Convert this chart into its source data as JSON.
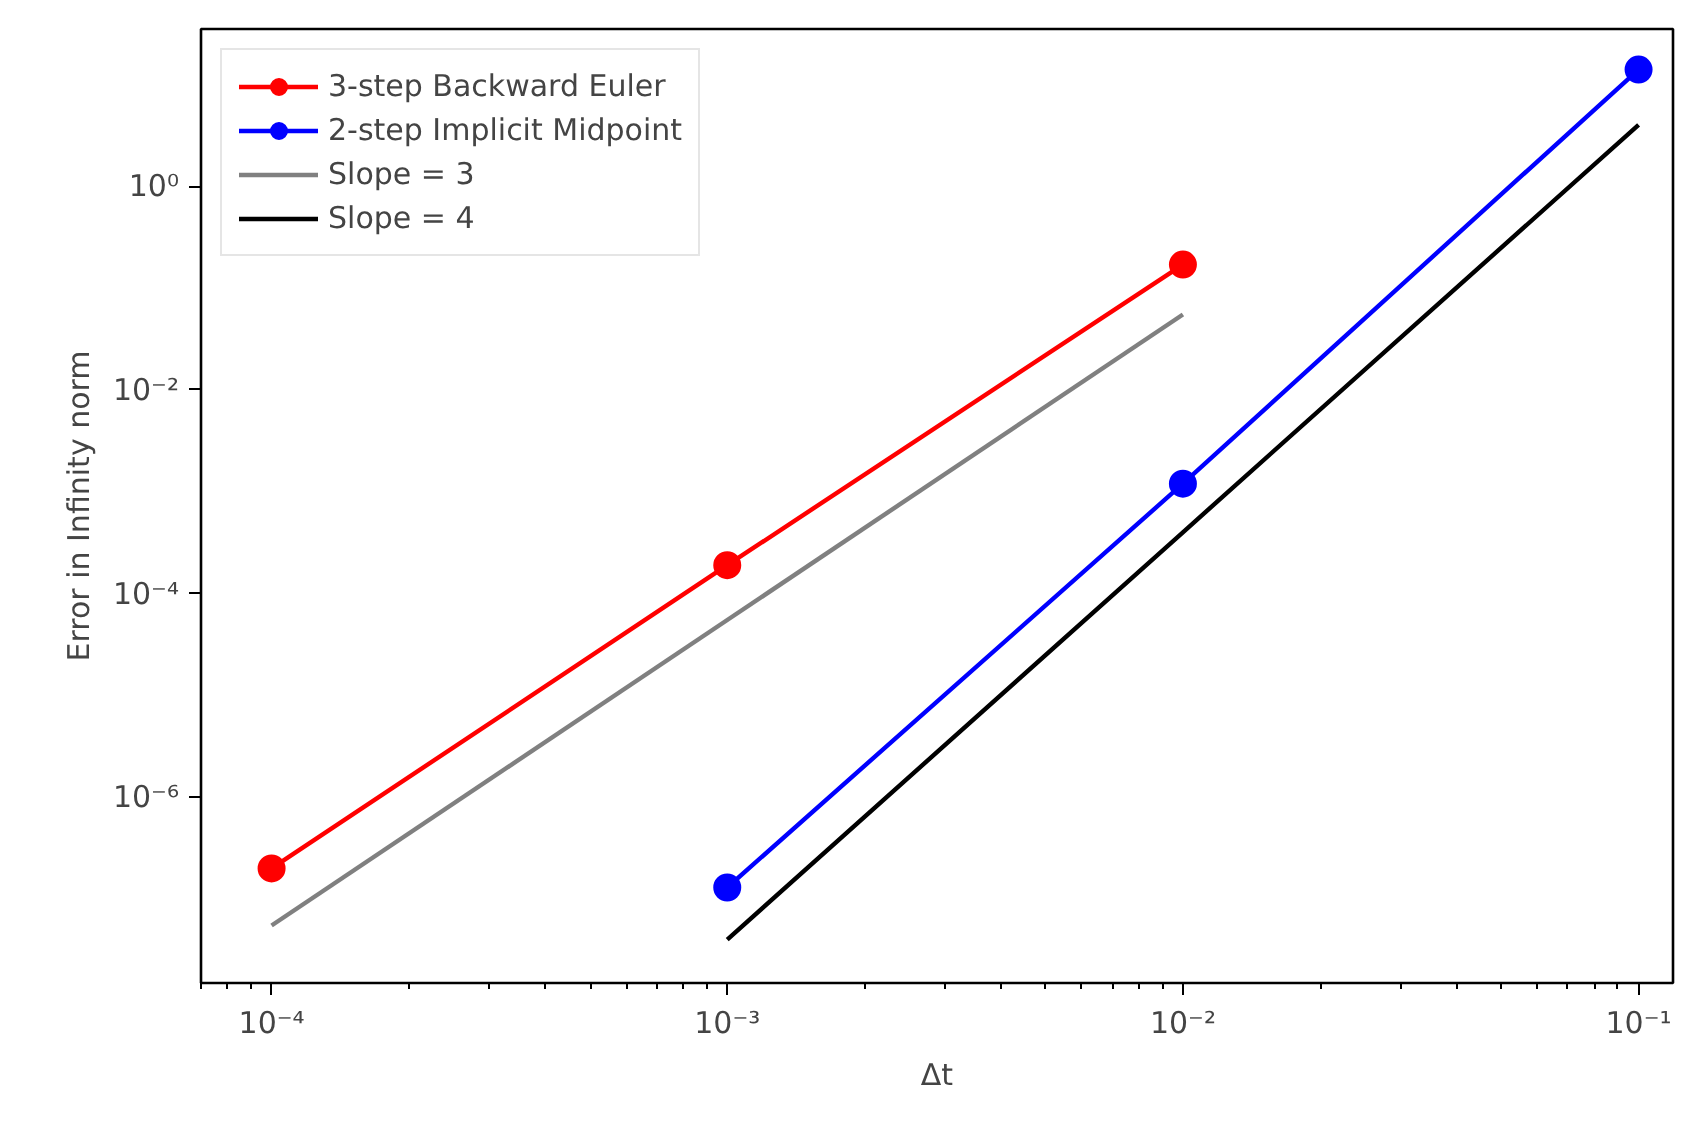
{
  "chart_data": {
    "type": "line",
    "xlabel": "Δt",
    "ylabel": "Error in Infinity norm",
    "log": "xy",
    "xlim": [
      7e-05,
      0.119
    ],
    "ylim": [
      1.5e-08,
      35
    ],
    "xticks": [
      {
        "value": 0.0001,
        "label": "10⁻⁴"
      },
      {
        "value": 0.001,
        "label": "10⁻³"
      },
      {
        "value": 0.01,
        "label": "10⁻²"
      },
      {
        "value": 0.1,
        "label": "10⁻¹"
      }
    ],
    "yticks": [
      {
        "value": 1e-06,
        "label": "10⁻⁶"
      },
      {
        "value": 0.0001,
        "label": "10⁻⁴"
      },
      {
        "value": 0.01,
        "label": "10⁻²"
      },
      {
        "value": 1,
        "label": "10⁰"
      }
    ],
    "grid": false,
    "legend": "top left",
    "series": [
      {
        "name": "3-step Backward Euler",
        "color": "#ff0000",
        "marker": "circle",
        "x": [
          0.0001,
          0.001,
          0.01
        ],
        "values": [
          2e-07,
          0.00019,
          0.17
        ]
      },
      {
        "name": "2-step Implicit Midpoint",
        "color": "#0000ff",
        "marker": "circle",
        "x": [
          0.001,
          0.01,
          0.1
        ],
        "values": [
          1.3e-07,
          0.0012,
          14
        ]
      },
      {
        "name": "Slope = 3",
        "color": "#808080",
        "marker": "none",
        "x": [
          0.0001,
          0.001,
          0.01
        ],
        "values": [
          5.5e-08,
          5.5e-05,
          0.055
        ]
      },
      {
        "name": "Slope = 4",
        "color": "#000000",
        "marker": "none",
        "x": [
          0.001,
          0.01,
          0.1
        ],
        "values": [
          4e-08,
          0.0004,
          4
        ]
      }
    ]
  }
}
